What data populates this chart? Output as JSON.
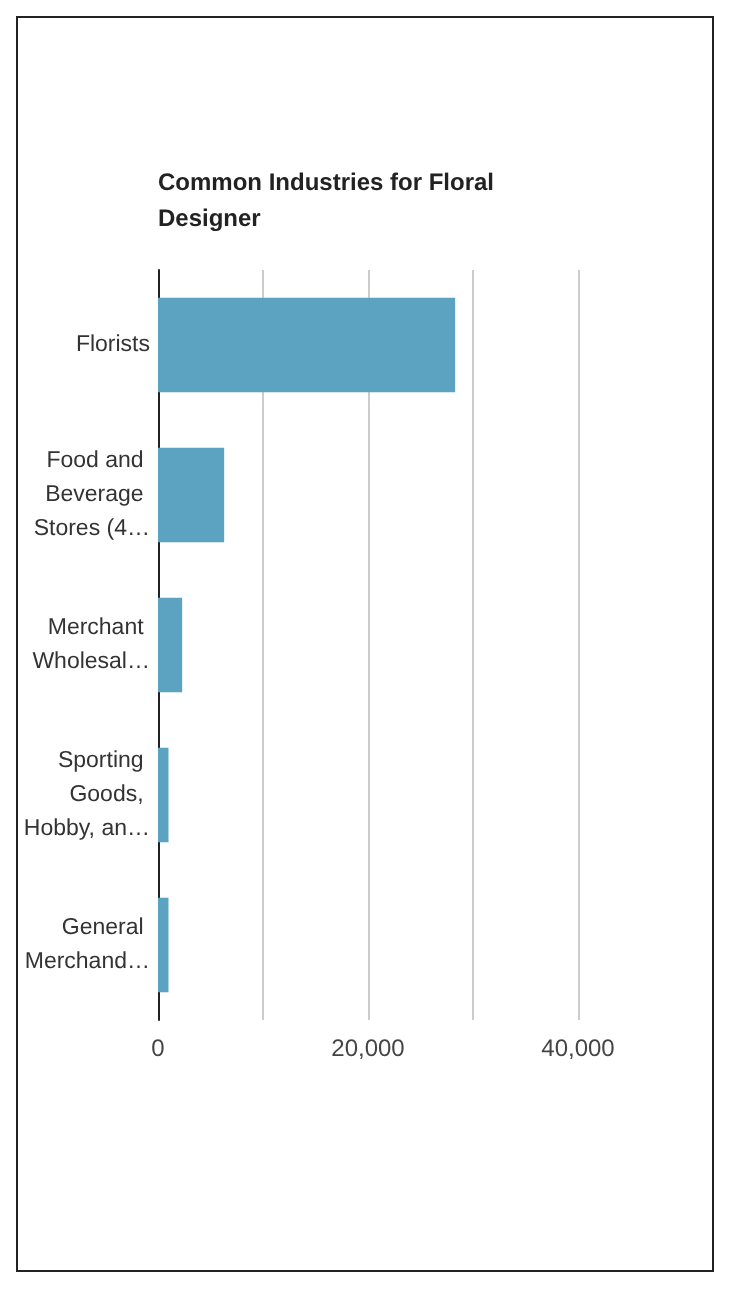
{
  "chart_data": {
    "type": "bar",
    "orientation": "horizontal",
    "title": "Common Industries for Floral Designer",
    "categories": [
      "Florists",
      "Food and Beverage Stores (4…",
      "Merchant Wholesal…",
      "Sporting Goods, Hobby, an…",
      "General Merchand…"
    ],
    "values": [
      28300,
      6300,
      2300,
      1000,
      1000
    ],
    "color": "#5ba3c0",
    "xlim": [
      0,
      40000
    ],
    "xticks": [
      0,
      {
        "value": 10000,
        "label": null
      },
      {
        "value": 20000,
        "label": "20,000"
      },
      {
        "value": 30000,
        "label": null
      },
      {
        "value": 40000,
        "label": "40,000"
      }
    ],
    "grid": "x"
  }
}
